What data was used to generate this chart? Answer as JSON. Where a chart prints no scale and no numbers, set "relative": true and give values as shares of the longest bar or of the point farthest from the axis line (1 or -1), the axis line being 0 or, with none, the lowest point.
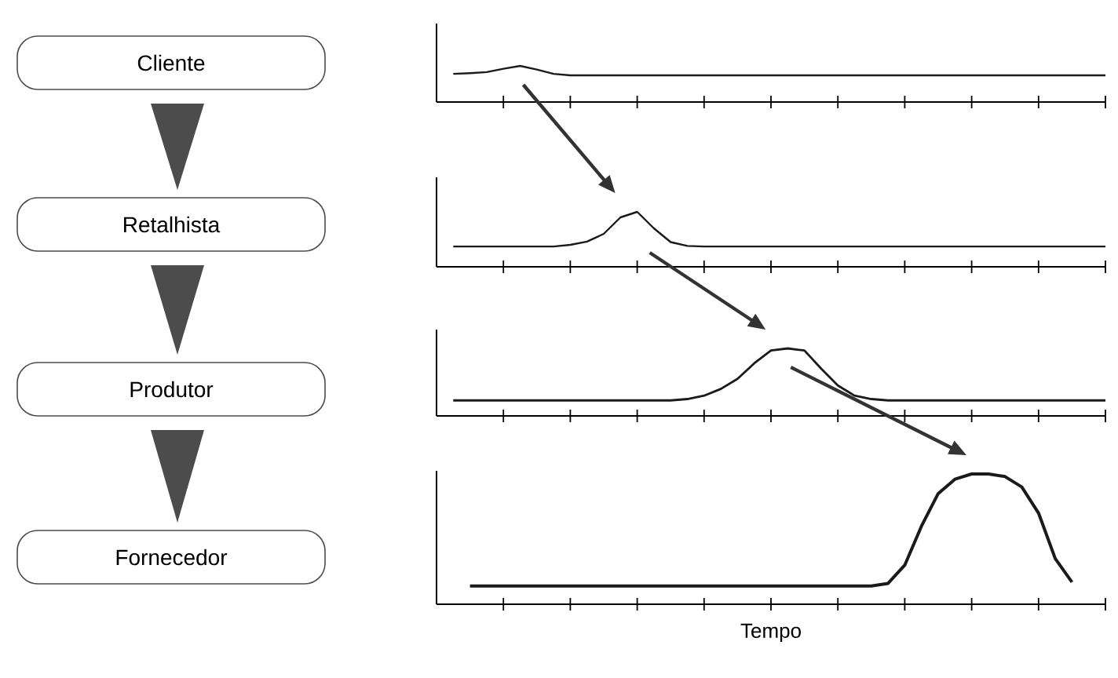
{
  "chart_data": [
    {
      "type": "line",
      "ylabel": "Cliente",
      "relative": true,
      "categories": [
        null,
        null,
        null,
        null,
        null,
        null,
        null,
        null,
        null,
        null,
        null,
        null,
        null,
        null,
        null,
        null,
        null,
        null,
        null,
        null,
        null,
        null,
        null,
        null,
        null,
        null,
        null,
        null,
        null,
        null,
        null,
        null,
        null,
        null,
        null,
        null,
        null,
        null,
        null,
        null,
        null
      ],
      "series": [
        {
          "color": "#1a1a1a",
          "values": [
            null,
            0.78,
            0.8,
            0.83,
            0.92,
            1,
            0.9,
            0.78,
            0.74,
            0.74,
            0.74,
            0.74,
            0.74,
            0.74,
            0.74,
            0.74,
            0.74,
            0.74,
            0.74,
            0.74,
            0.74,
            0.74,
            0.74,
            0.74,
            0.74,
            0.74,
            0.74,
            0.74,
            0.74,
            0.74,
            0.74,
            0.74,
            0.74,
            0.74,
            0.74,
            0.74,
            0.74,
            0.74,
            0.74,
            0.74,
            0.74
          ]
        }
      ]
    },
    {
      "type": "line",
      "ylabel": "Retalhista",
      "relative": true,
      "categories": [
        null,
        null,
        null,
        null,
        null,
        null,
        null,
        null,
        null,
        null,
        null,
        null,
        null,
        null,
        null,
        null,
        null,
        null,
        null,
        null,
        null,
        null,
        null,
        null,
        null,
        null,
        null,
        null,
        null,
        null,
        null,
        null,
        null,
        null,
        null,
        null,
        null,
        null,
        null,
        null,
        null
      ],
      "series": [
        {
          "color": "#1a1a1a",
          "values": [
            null,
            0.37,
            0.37,
            0.37,
            0.37,
            0.37,
            0.37,
            0.37,
            0.4,
            0.46,
            0.6,
            0.9,
            1,
            0.7,
            0.45,
            0.38,
            0.37,
            0.37,
            0.37,
            0.37,
            0.37,
            0.37,
            0.37,
            0.37,
            0.37,
            0.37,
            0.37,
            0.37,
            0.37,
            0.37,
            0.37,
            0.37,
            0.37,
            0.37,
            0.37,
            0.37,
            0.37,
            0.37,
            0.37,
            0.37,
            0.37
          ]
        }
      ]
    },
    {
      "type": "line",
      "ylabel": "Produtor",
      "relative": true,
      "categories": [
        null,
        null,
        null,
        null,
        null,
        null,
        null,
        null,
        null,
        null,
        null,
        null,
        null,
        null,
        null,
        null,
        null,
        null,
        null,
        null,
        null,
        null,
        null,
        null,
        null,
        null,
        null,
        null,
        null,
        null,
        null,
        null,
        null,
        null,
        null,
        null,
        null,
        null,
        null,
        null,
        null
      ],
      "series": [
        {
          "color": "#1a1a1a",
          "values": [
            null,
            0.23,
            0.23,
            0.23,
            0.23,
            0.23,
            0.23,
            0.23,
            0.23,
            0.23,
            0.23,
            0.23,
            0.23,
            0.23,
            0.23,
            0.25,
            0.3,
            0.4,
            0.55,
            0.78,
            0.97,
            1,
            0.97,
            0.7,
            0.45,
            0.3,
            0.25,
            0.23,
            0.23,
            0.23,
            0.23,
            0.23,
            0.23,
            0.23,
            0.23,
            0.23,
            0.23,
            0.23,
            0.23,
            0.23,
            0.23
          ]
        }
      ]
    },
    {
      "type": "line",
      "ylabel": "Fornecedor",
      "xlabel": "Tempo",
      "relative": true,
      "categories": [
        null,
        null,
        null,
        null,
        null,
        null,
        null,
        null,
        null,
        null,
        null,
        null,
        null,
        null,
        null,
        null,
        null,
        null,
        null,
        null,
        null,
        null,
        null,
        null,
        null,
        null,
        null,
        null,
        null,
        null,
        null,
        null,
        null,
        null,
        null,
        null,
        null,
        null,
        null,
        null,
        null
      ],
      "series": [
        {
          "color": "#1a1a1a",
          "values": [
            null,
            null,
            0.14,
            0.14,
            0.14,
            0.14,
            0.14,
            0.14,
            0.14,
            0.14,
            0.14,
            0.14,
            0.14,
            0.14,
            0.14,
            0.14,
            0.14,
            0.14,
            0.14,
            0.14,
            0.14,
            0.14,
            0.14,
            0.14,
            0.14,
            0.14,
            0.14,
            0.16,
            0.3,
            0.6,
            0.85,
            0.96,
            1,
            1,
            0.98,
            0.9,
            0.7,
            0.35,
            0.17,
            null,
            null
          ]
        }
      ]
    }
  ]
}
